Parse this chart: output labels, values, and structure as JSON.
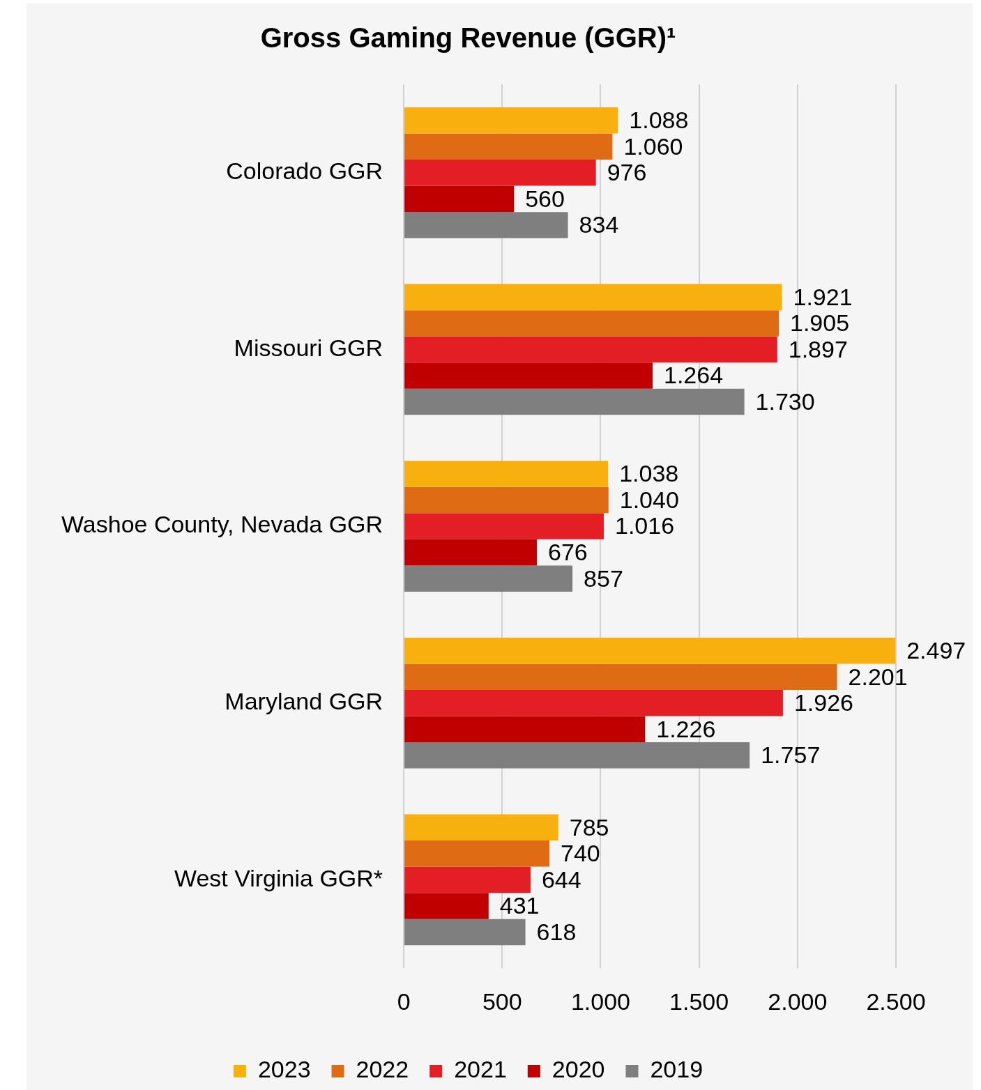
{
  "chart_data": {
    "type": "bar",
    "orientation": "horizontal",
    "title": "Gross Gaming Revenue (GGR)¹",
    "categories": [
      "Colorado GGR",
      "Missouri GGR",
      "Washoe County, Nevada GGR",
      "Maryland GGR",
      "West Virginia GGR*"
    ],
    "series": [
      {
        "name": "2023",
        "color": "#f8b00f",
        "values": [
          1088,
          1921,
          1038,
          2497,
          785
        ],
        "value_labels": [
          "1.088",
          "1.921",
          "1.038",
          "2.497",
          "785"
        ]
      },
      {
        "name": "2022",
        "color": "#e06b15",
        "values": [
          1060,
          1905,
          1040,
          2201,
          740
        ],
        "value_labels": [
          "1.060",
          "1.905",
          "1.040",
          "2.201",
          "740"
        ]
      },
      {
        "name": "2021",
        "color": "#e31e25",
        "values": [
          976,
          1897,
          1016,
          1926,
          644
        ],
        "value_labels": [
          "976",
          "1.897",
          "1.016",
          "1.926",
          "644"
        ]
      },
      {
        "name": "2020",
        "color": "#c00000",
        "values": [
          560,
          1264,
          676,
          1226,
          431
        ],
        "value_labels": [
          "560",
          "1.264",
          "676",
          "1.226",
          "431"
        ]
      },
      {
        "name": "2019",
        "color": "#7f7f7f",
        "values": [
          834,
          1730,
          857,
          1757,
          618
        ],
        "value_labels": [
          "834",
          "1.730",
          "857",
          "1.757",
          "618"
        ]
      }
    ],
    "xlim": [
      0,
      2500
    ],
    "xticks": [
      0,
      500,
      {
        "value": 1000,
        "label": "1.000"
      },
      {
        "value": 1500,
        "label": "1.500"
      },
      {
        "value": 2000,
        "label": "2.000"
      },
      {
        "value": 2500,
        "label": "2.500"
      }
    ],
    "grid": "x",
    "legend": "bottom"
  }
}
